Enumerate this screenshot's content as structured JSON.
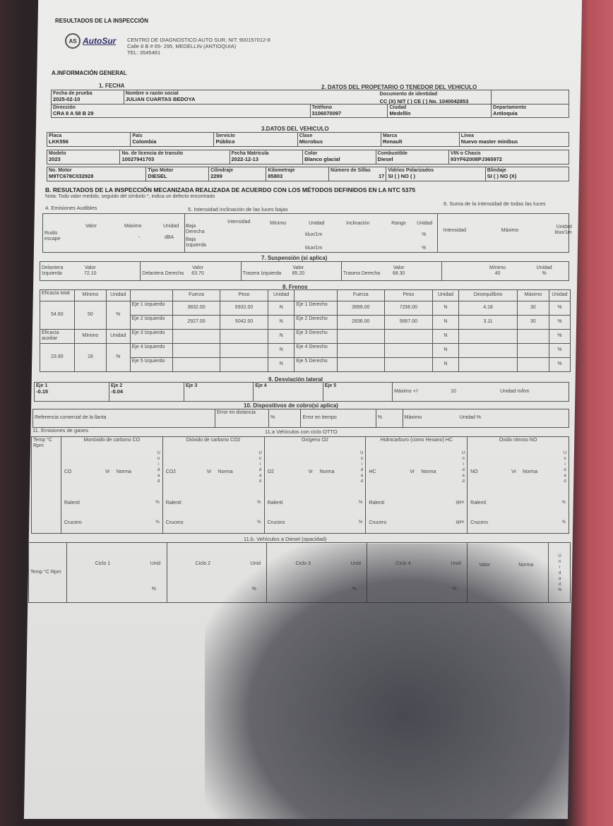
{
  "doc_title": "RESULTADOS DE LA INSPECCIÓN",
  "logo_text": "AutoSur",
  "company": {
    "line1": "CENTRO DE DIAGNOSTICO AUTO SUR, NIT: 900157012-8",
    "line2": "Calle 8 B # 65- 295, MEDELLIN (ANTIOQUIA)",
    "line3": "TEL: 3545481"
  },
  "sectionA": "A.INFORMACIÓN GENERAL",
  "s1": "1. FECHA",
  "s2": "2. DATOS DEL PROPETARIO O TENEDOR DEL VEHICULO",
  "owner": {
    "fecha_l": "Fecha de prueba",
    "fecha": "2025-02-10",
    "nombre_l": "Nombre o razón social",
    "nombre": "JULIAN CUARTAS BEDOYA",
    "doc_l": "Documento de identidad",
    "doc": "CC (X) NIT ( ) CE ( ) No. 1040042853",
    "dir_l": "Dirección",
    "dir": "CRA 8 A 58 B 29",
    "tel_l": "Teléfono",
    "tel": "3106070097",
    "ciudad_l": "Ciudad",
    "ciudad": "Medellín",
    "depto_l": "Departamento",
    "depto": "Antioquia"
  },
  "s3": "3.DATOS DEL VEHICULO",
  "veh": {
    "placa_l": "Placa",
    "placa": "LKK556",
    "pais_l": "País",
    "pais": "Colombia",
    "serv_l": "Servicio",
    "serv": "Público",
    "clase_l": "Clase",
    "clase": "Microbus",
    "marca_l": "Marca",
    "marca": "Renault",
    "linea_l": "Línea",
    "linea": "Nuevo master minibus",
    "modelo_l": "Modelo",
    "modelo": "2023",
    "lic_l": "No. de licencia de transito",
    "lic": "10027941703",
    "fmat_l": "Fecha Matricula",
    "fmat": "2022-12-13",
    "color_l": "Color",
    "color": "Blanco glacial",
    "comb_l": "Combustible",
    "comb": "Diesel",
    "vin_l": "VIN o Chasis",
    "vin": "93YF62008PJ365972",
    "motor_l": "No. Motor",
    "motor": "M9TC678C032928",
    "tipo_l": "Tipo Motor",
    "tipo": "DIESEL",
    "cil_l": "Cilindraje",
    "cil": "2299",
    "km_l": "Kilometraje",
    "km": "85803",
    "sillas_l": "Número de Sillas",
    "sillas": "17",
    "vid_l": "Vidrios Polarizados",
    "vid": "SI ( ) NO ( )",
    "blin_l": "Blindaje",
    "blin": "SI ( ) NO (X)"
  },
  "sectionB": "B. RESULTADOS DE LA INSPECCIÓN MECANIZADA REALIZADA DE ACUERDO CON LOS MÉTODOS DEFINIDOS EN LA NTC 5375",
  "nota": "Nota: Todo valor medido, seguido del símbolo *, indica un defecto encontrado",
  "s4": "4. Emisiones Audibles",
  "s5": "5. Intensidad inclinación de las luces bajas",
  "s6": "6. Suma de la intensidad de todas las luces",
  "ruido": {
    "label": "Ruido escape",
    "valor": "Valor",
    "maximo": "Máximo",
    "unidad": "Unidad",
    "max": "-",
    "unit": "dBA"
  },
  "luces": {
    "intensidad": "Intensidad",
    "minimo": "Mínimo",
    "unidad": "Unidad",
    "inclinacion": "Inclinación",
    "rango": "Rango",
    "baja_der": "Baja Derecha",
    "baja_izq": "Baja Izquierda",
    "klux": "klux/1m",
    "pct": "%",
    "s_int": "Intensidad",
    "s_max": "Máximo",
    "s_unit": "Unidad klux/1m"
  },
  "s7": "7. Suspensión (si aplica)",
  "susp": {
    "di": "Delantera Izquierda",
    "dd": "Delantera Derecha",
    "ti": "Trasera Izquierda",
    "td": "Trasera Derecha",
    "valor": "Valor",
    "v_di": "72.10",
    "v_dd": "63.70",
    "v_ti": "85.20",
    "v_td": "68.30",
    "min_l": "Mínimo",
    "min": "40",
    "unit_l": "Unidad",
    "unit": "%"
  },
  "s8": "8. Frenos",
  "frenos": {
    "ef_total": "Eficacia total",
    "ef_aux": "Eficacia auxiliar",
    "minimo": "Mínimo",
    "unidad": "Unidad",
    "fuerza": "Fuerza",
    "peso": "Peso",
    "deseq": "Desequilibrio",
    "maximo": "Máximo",
    "total": "54.60",
    "total_min": "50",
    "aux": "23.90",
    "aux_min": "18",
    "pct": "%",
    "N": "N",
    "ejes": [
      {
        "izq": "Eje 1 Izquierdo",
        "fi": "3832.00",
        "pi": "6932.00",
        "der": "Eje 1 Derecho",
        "fd": "3999.00",
        "pd": "7256.00",
        "deseq": "4.18",
        "max": "30"
      },
      {
        "izq": "Eje 2 Izquierdo",
        "fi": "2927.00",
        "pi": "5042.00",
        "der": "Eje 2 Derecho",
        "fd": "2836.00",
        "pd": "5667.00",
        "deseq": "3.11",
        "max": "30"
      },
      {
        "izq": "Eje 3 Izquierdo",
        "fi": "",
        "pi": "",
        "der": "Eje 3 Derecho",
        "fd": "",
        "pd": "",
        "deseq": "",
        "max": ""
      },
      {
        "izq": "Eje 4 Izquierdo",
        "fi": "",
        "pi": "",
        "der": "Eje 4 Derecho",
        "fd": "",
        "pd": "",
        "deseq": "",
        "max": ""
      },
      {
        "izq": "Eje 5 Izquierdo",
        "fi": "",
        "pi": "",
        "der": "Eje 5 Derecho",
        "fd": "",
        "pd": "",
        "deseq": "",
        "max": ""
      }
    ]
  },
  "s9": "9. Desviación lateral",
  "desv": {
    "e1": "Eje 1",
    "v1": "-0.15",
    "e2": "Eje 2",
    "v2": "-0.04",
    "e3": "Eje 3",
    "e4": "Eje 4",
    "e5": "Eje 5",
    "max_l": "Máximo +/-",
    "max": "10",
    "unit": "Unidad m/km"
  },
  "s10": "10. Dispositivos de cobro(si aplica)",
  "cobro": {
    "ref": "Referencia comercial de la llanta",
    "err_d": "Error en distancia",
    "pct": "%",
    "err_t": "Error en tiempo",
    "max": "Máximo",
    "unit": "Unidad %"
  },
  "s11": "11. Emisiones de gases",
  "s11a": "11.a Vehículos con ciclo OTTO",
  "otto": {
    "temp": "Temp °C",
    "rpm": "Rpm",
    "vr": "Vr",
    "norma": "Norma",
    "ralenti": "Ralentí",
    "crucero": "Crucero",
    "unidad": "U n i d a d",
    "gases": [
      {
        "name": "Monóxido de carbono CO",
        "code": "CO",
        "u": "%"
      },
      {
        "name": "Dióxido de carbono CO2",
        "code": "CO2",
        "u": "%"
      },
      {
        "name": "Oxígeno O2",
        "code": "O2",
        "u": "%"
      },
      {
        "name": "Hidrocarburo (como Hexano) HC",
        "code": "HC",
        "u": "ppm"
      },
      {
        "name": "Óxido nitroso NO",
        "code": "NO",
        "u": "%"
      }
    ]
  },
  "s11b": "11.b. Vehículos a Diesel (opacidad)",
  "diesel": {
    "temp": "Temp °C",
    "rpm": "Rpm",
    "c1": "Ciclo 1",
    "c2": "Ciclo 2",
    "c3": "Ciclo 3",
    "c4": "Ciclo 4",
    "unid": "Unid",
    "pct": "%",
    "valor": "Valor",
    "norma": "Norma",
    "unidad": "U n i d a d"
  }
}
